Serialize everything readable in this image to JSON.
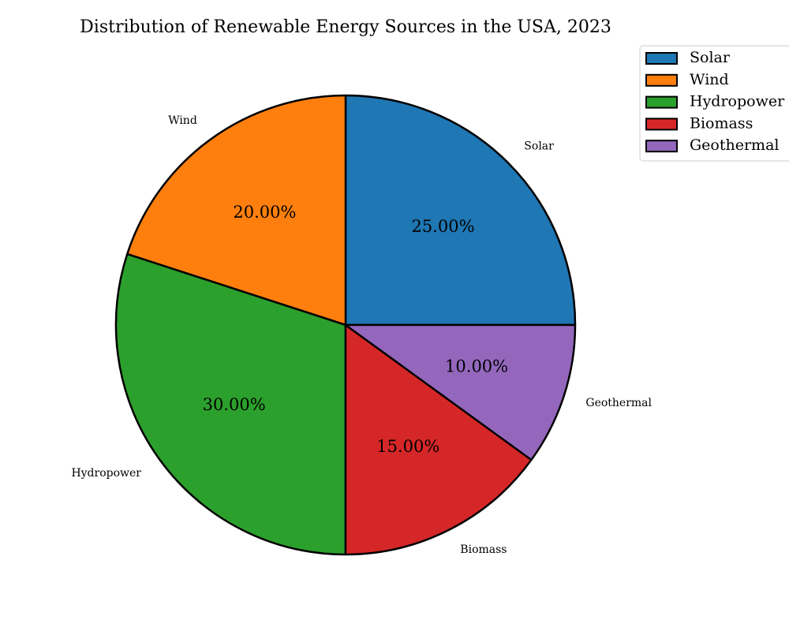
{
  "chart_data": {
    "type": "pie",
    "title": "Distribution of Renewable Energy Sources in the USA, 2023",
    "categories": [
      "Solar",
      "Wind",
      "Hydropower",
      "Biomass",
      "Geothermal"
    ],
    "values": [
      25,
      20,
      30,
      15,
      10
    ],
    "value_labels": [
      "25.00%",
      "20.00%",
      "30.00%",
      "15.00%",
      "10.00%"
    ],
    "colors": [
      "#1f77b4",
      "#ff7f0e",
      "#2ca02c",
      "#d62728",
      "#9467bd"
    ],
    "start_angle_deg": 0,
    "direction": "counterclockwise",
    "legend": {
      "location": "top-right",
      "entries": [
        "Solar",
        "Wind",
        "Hydropower",
        "Biomass",
        "Geothermal"
      ]
    },
    "edge_color": "#000000"
  }
}
